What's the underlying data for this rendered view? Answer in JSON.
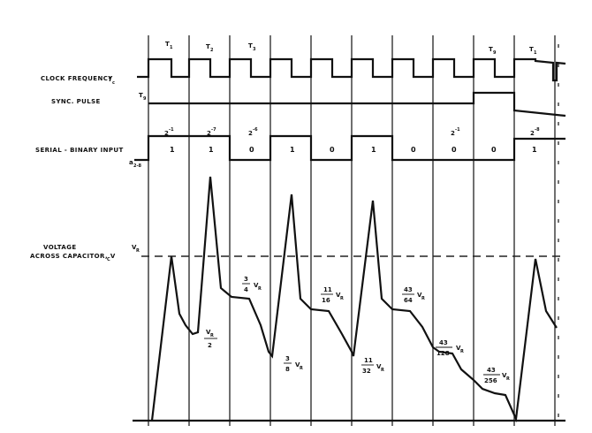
{
  "labels": {
    "clock": "CLOCK FREQUENCY",
    "clock_sym": "f",
    "clock_sub": "c",
    "sync": "SYNC. PULSE",
    "sync_sym": "T",
    "sync_sub": "9",
    "serial": "SERIAL - BINARY INPUT",
    "serial_sym": "a",
    "serial_sub": "2-8",
    "voltage_1": "VOLTAGE",
    "voltage_2": "ACROSS CAPACITOR, V",
    "voltage_sub": "C",
    "vr": "V",
    "vr_sub": "R"
  },
  "periods": [
    {
      "n": "T",
      "s": "1"
    },
    {
      "n": "T",
      "s": "2"
    },
    {
      "n": "T",
      "s": "3"
    },
    {
      "n": "T",
      "s": "9"
    },
    {
      "n": "T",
      "s": "1"
    }
  ],
  "weights": [
    {
      "b": "2",
      "e": "-1"
    },
    {
      "b": "2",
      "e": "-7"
    },
    {
      "b": "2",
      "e": "-6"
    },
    {
      "b": "2",
      "e": "-1"
    },
    {
      "b": "2",
      "e": "-8"
    }
  ],
  "bits": [
    "1",
    "1",
    "0",
    "1",
    "0",
    "1",
    "0",
    "0",
    "0",
    "1"
  ],
  "fractions": [
    {
      "num": "V",
      "nsub": "R",
      "den": "2",
      "suffix": ""
    },
    {
      "num": "3",
      "nsub": "",
      "den": "4",
      "suffix": "V",
      "ssub": "R"
    },
    {
      "num": "3",
      "nsub": "",
      "den": "8",
      "suffix": "V",
      "ssub": "R"
    },
    {
      "num": "11",
      "nsub": "",
      "den": "16",
      "suffix": "V",
      "ssub": "R"
    },
    {
      "num": "11",
      "nsub": "",
      "den": "32",
      "suffix": "V",
      "ssub": "R"
    },
    {
      "num": "43",
      "nsub": "",
      "den": "64",
      "suffix": "V",
      "ssub": "R"
    },
    {
      "num": "43",
      "nsub": "",
      "den": "128",
      "suffix": "V",
      "ssub": "R"
    },
    {
      "num": "43",
      "nsub": "",
      "den": "256",
      "suffix": "V",
      "ssub": "R"
    }
  ]
}
